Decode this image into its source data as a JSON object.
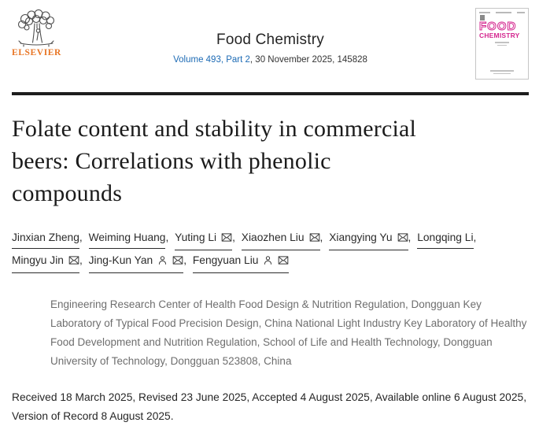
{
  "header": {
    "journal_title": "Food Chemistry",
    "volume_link": "Volume 493, Part 2",
    "issue_rest": ", 30 November 2025, 145828",
    "publisher_wordmark": "ELSEVIER"
  },
  "cover": {
    "title_line1": "FOOD",
    "title_line2": "CHEMISTRY"
  },
  "article": {
    "title": "Folate content and stability in commercial\nbeers: Correlations with phenolic\ncompounds",
    "affiliation": "Engineering Research Center of Health Food Design & Nutrition Regulation, Dongguan Key Laboratory of Typical Food Precision Design, China National Light Industry Key Laboratory of Healthy Food Development and Nutrition Regulation, School of Life and Health Technology, Dongguan University of Technology, Dongguan 523808, China",
    "dates": "Received 18 March 2025, Revised 23 June 2025, Accepted 4 August 2025, Available online 6 August 2025, Version of Record 8 August 2025."
  },
  "authors": {
    "separator": ", ",
    "list": [
      {
        "name": "Jinxian Zheng",
        "person": false,
        "envelope": false
      },
      {
        "name": "Weiming Huang",
        "person": false,
        "envelope": false
      },
      {
        "name": "Yuting Li",
        "person": false,
        "envelope": true
      },
      {
        "name": "Xiaozhen Liu",
        "person": false,
        "envelope": true
      },
      {
        "name": "Xiangying Yu",
        "person": false,
        "envelope": true
      },
      {
        "name": "Longqing Li",
        "person": false,
        "envelope": false
      },
      {
        "name": "Mingyu Jin",
        "person": false,
        "envelope": true
      },
      {
        "name": "Jing-Kun Yan",
        "person": true,
        "envelope": true
      },
      {
        "name": "Fengyuan Liu",
        "person": true,
        "envelope": true
      }
    ]
  },
  "colors": {
    "link_blue": "#1d6bb5",
    "elsevier_orange": "#e87524",
    "cover_magenta": "#d4278f",
    "rule_black": "#1d1d1d"
  }
}
